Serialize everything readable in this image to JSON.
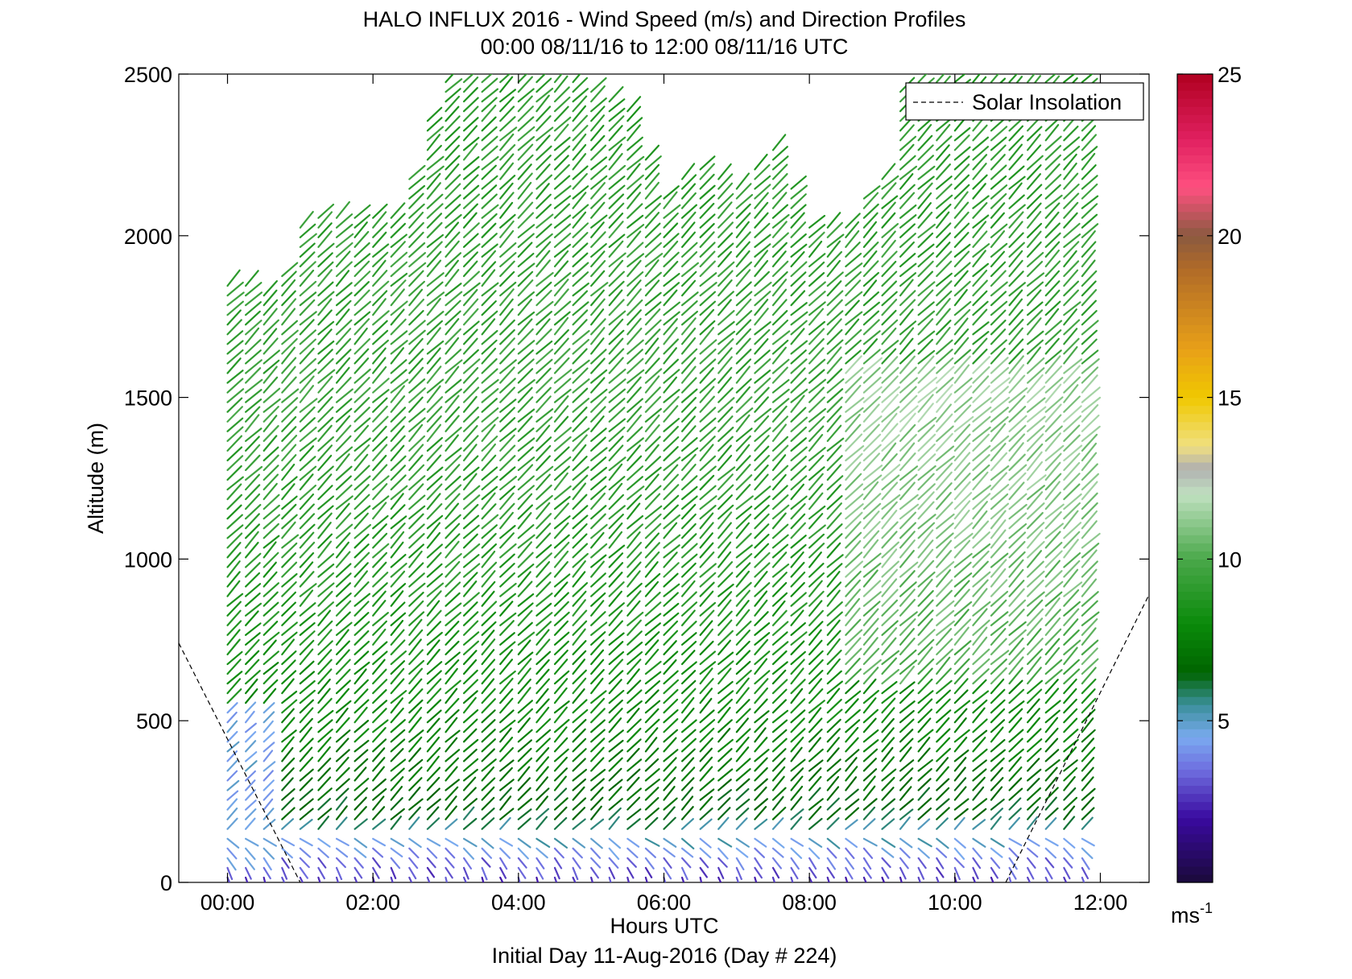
{
  "chart_data": {
    "type": "wind-barb-profile",
    "title": "HALO INFLUX 2016 - Wind Speed (m/s) and Direction Profiles",
    "subtitle": "00:00 08/11/16 to 12:00 08/11/16  UTC",
    "xlabel": "Hours UTC",
    "ylabel": "Altitude (m)",
    "footer": "Initial Day 11-Aug-2016 (Day # 224)",
    "x_ticks": [
      {
        "value": 0,
        "label": "00:00"
      },
      {
        "value": 2,
        "label": "02:00"
      },
      {
        "value": 4,
        "label": "04:00"
      },
      {
        "value": 6,
        "label": "06:00"
      },
      {
        "value": 8,
        "label": "08:00"
      },
      {
        "value": 10,
        "label": "10:00"
      },
      {
        "value": 12,
        "label": "12:00"
      }
    ],
    "xlim": [
      -0.67,
      12.67
    ],
    "y_ticks": [
      {
        "value": 0,
        "label": "0"
      },
      {
        "value": 500,
        "label": "500"
      },
      {
        "value": 1000,
        "label": "1000"
      },
      {
        "value": 1500,
        "label": "1500"
      },
      {
        "value": 2000,
        "label": "2000"
      },
      {
        "value": 2500,
        "label": "2500"
      }
    ],
    "ylim": [
      0,
      2500
    ],
    "legend": {
      "entries": [
        "Solar Insolation"
      ],
      "placement": "top-right",
      "style": "dashed black line"
    },
    "colorbar": {
      "range": [
        0,
        25
      ],
      "ticks": [
        {
          "value": 5,
          "label": "5"
        },
        {
          "value": 10,
          "label": "10"
        },
        {
          "value": 15,
          "label": "15"
        },
        {
          "value": 20,
          "label": "20"
        },
        {
          "value": 25,
          "label": "25"
        }
      ],
      "unit_label": "ms",
      "unit_exponent": "-1",
      "stops": [
        {
          "value": 0,
          "color": "#1a0a3a"
        },
        {
          "value": 2,
          "color": "#3a0aa0"
        },
        {
          "value": 3.5,
          "color": "#6f6fe0"
        },
        {
          "value": 4.5,
          "color": "#7aaaf0"
        },
        {
          "value": 5.5,
          "color": "#3a8f9a"
        },
        {
          "value": 6.5,
          "color": "#006400"
        },
        {
          "value": 8,
          "color": "#0a8a0a"
        },
        {
          "value": 10,
          "color": "#4aa84a"
        },
        {
          "value": 12,
          "color": "#c0e0c0"
        },
        {
          "value": 12.8,
          "color": "#b0b0b0"
        },
        {
          "value": 13.5,
          "color": "#f0e080"
        },
        {
          "value": 15,
          "color": "#f0c800"
        },
        {
          "value": 16.5,
          "color": "#e8a018"
        },
        {
          "value": 19,
          "color": "#b06a28"
        },
        {
          "value": 20,
          "color": "#8a5a40"
        },
        {
          "value": 21.5,
          "color": "#ff5080"
        },
        {
          "value": 23,
          "color": "#e02060"
        },
        {
          "value": 25,
          "color": "#b00020"
        }
      ]
    },
    "solar_insolation": {
      "left": [
        {
          "x": -0.67,
          "y": 740
        },
        {
          "x": 1.0,
          "y": 0
        }
      ],
      "right": [
        {
          "x": 10.7,
          "y": 0
        },
        {
          "x": 12.67,
          "y": 890
        }
      ]
    },
    "profiles": {
      "time_start": 0.0,
      "time_end": 11.75,
      "time_step": 0.25,
      "altitude_step": 30,
      "top_altitude_by_hour": [
        {
          "hour": 0.0,
          "alt": 1870
        },
        {
          "hour": 0.5,
          "alt": 1830
        },
        {
          "hour": 0.8,
          "alt": 1900
        },
        {
          "hour": 1.0,
          "alt": 2050
        },
        {
          "hour": 1.5,
          "alt": 2080
        },
        {
          "hour": 2.2,
          "alt": 2050
        },
        {
          "hour": 2.5,
          "alt": 2200
        },
        {
          "hour": 2.8,
          "alt": 2400
        },
        {
          "hour": 3.0,
          "alt": 2480
        },
        {
          "hour": 4.5,
          "alt": 2500
        },
        {
          "hour": 5.5,
          "alt": 2400
        },
        {
          "hour": 6.0,
          "alt": 2120
        },
        {
          "hour": 6.5,
          "alt": 2230
        },
        {
          "hour": 7.0,
          "alt": 2150
        },
        {
          "hour": 7.5,
          "alt": 2280
        },
        {
          "hour": 8.0,
          "alt": 2050
        },
        {
          "hour": 8.5,
          "alt": 2030
        },
        {
          "hour": 9.0,
          "alt": 2200
        },
        {
          "hour": 9.3,
          "alt": 2500
        },
        {
          "hour": 11.75,
          "alt": 2500
        }
      ],
      "speed_by_altitude": [
        {
          "alt": 0,
          "speed": 2.5
        },
        {
          "alt": 80,
          "speed": 3.5
        },
        {
          "alt": 200,
          "speed": 6.5
        },
        {
          "alt": 500,
          "speed": 8.0
        },
        {
          "alt": 1000,
          "speed": 9.0
        },
        {
          "alt": 1500,
          "speed": 9.5
        },
        {
          "alt": 2500,
          "speed": 9.0
        }
      ],
      "late_morning_speed_boost": 1.8,
      "early_lowlevel_speed": 4.5,
      "direction_deg": 225
    }
  }
}
